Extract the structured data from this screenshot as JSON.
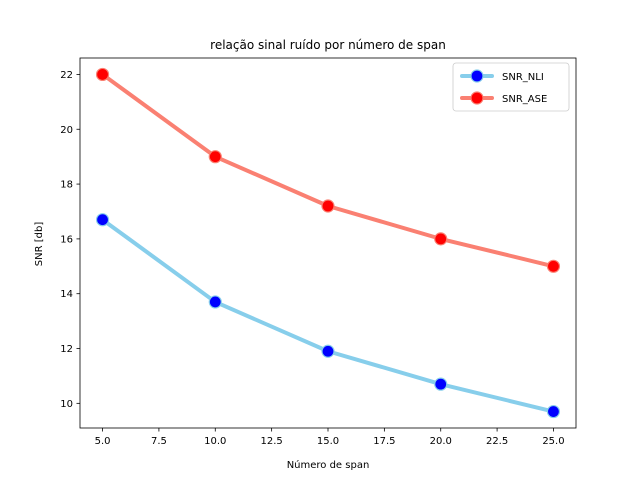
{
  "chart_data": {
    "type": "line",
    "title": "relação sinal ruído por número de span",
    "xlabel": "Número de span",
    "ylabel": "SNR [db]",
    "x": [
      5,
      10,
      15,
      20,
      25
    ],
    "xlim": [
      4,
      26
    ],
    "ylim": [
      9.1,
      22.6
    ],
    "xticks": [
      5.0,
      7.5,
      10.0,
      12.5,
      15.0,
      17.5,
      20.0,
      22.5,
      25.0
    ],
    "xtick_labels": [
      "5.0",
      "7.5",
      "10.0",
      "12.5",
      "15.0",
      "17.5",
      "20.0",
      "22.5",
      "25.0"
    ],
    "yticks": [
      10,
      12,
      14,
      16,
      18,
      20,
      22
    ],
    "ytick_labels": [
      "10",
      "12",
      "14",
      "16",
      "18",
      "20",
      "22"
    ],
    "grid": false,
    "legend_position": "top-right",
    "series": [
      {
        "name": "SNR_NLI",
        "values": [
          16.7,
          13.7,
          11.9,
          10.7,
          9.7
        ],
        "line_color": "#87ceeb",
        "marker_color": "#0000ff"
      },
      {
        "name": "SNR_ASE",
        "values": [
          22.0,
          19.0,
          17.2,
          16.0,
          15.0
        ],
        "line_color": "#fa8072",
        "marker_color": "#ff0000"
      }
    ]
  }
}
